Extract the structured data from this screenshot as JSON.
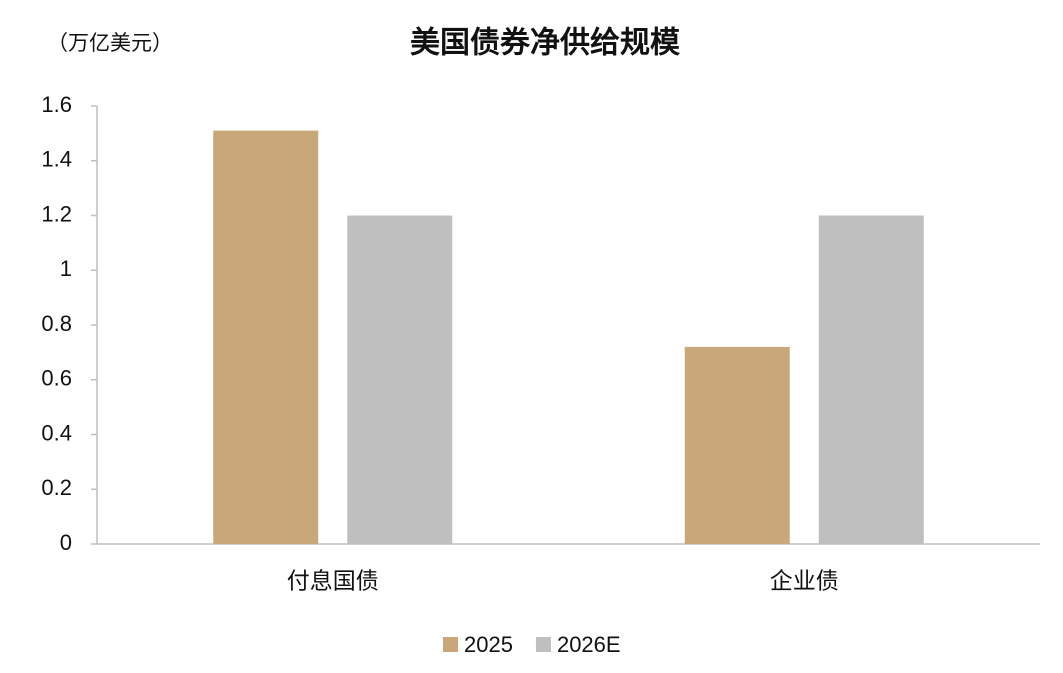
{
  "chart_data": {
    "type": "bar",
    "title": "美国债券净供给规模",
    "y_label": "（万亿美元）",
    "categories": [
      "付息国债",
      "企业债"
    ],
    "series": [
      {
        "name": "2025",
        "color": "#c9a779",
        "values": [
          1.51,
          0.72
        ]
      },
      {
        "name": "2026E",
        "color": "#bfbfbf",
        "values": [
          1.2,
          1.2
        ]
      }
    ],
    "ylim": [
      0,
      1.6
    ],
    "yticks": [
      0,
      0.2,
      0.4,
      0.6,
      0.8,
      1,
      1.2,
      1.4,
      1.6
    ],
    "grid": false,
    "legend": "bottom"
  }
}
